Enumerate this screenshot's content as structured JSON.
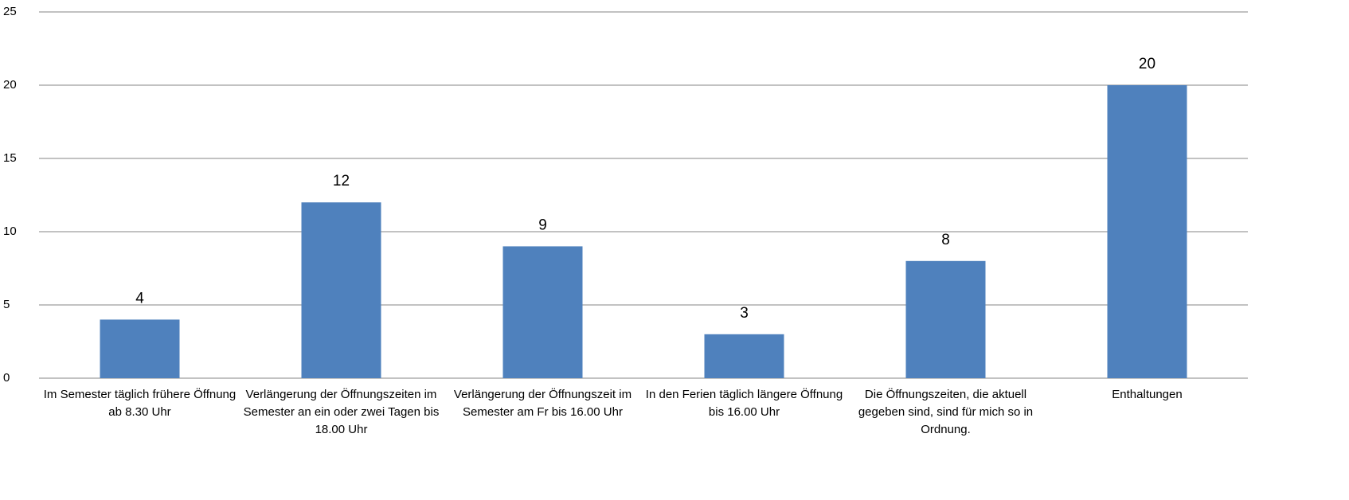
{
  "chart_data": {
    "type": "bar",
    "categories": [
      "Im Semester täglich frühere Öffnung ab 8.30 Uhr",
      "Verlängerung der Öffnungszeiten im Semester an ein oder zwei Tagen bis 18.00 Uhr",
      "Verlängerung der Öffnungszeit im Semester am Fr bis 16.00 Uhr",
      "In den Ferien täglich längere Öffnung bis 16.00 Uhr",
      "Die Öffnungszeiten, die aktuell gegeben sind, sind für mich so in Ordnung.",
      "Enthaltungen"
    ],
    "values": [
      4,
      12,
      9,
      3,
      8,
      20
    ],
    "color": "#4f81bd",
    "ylim": [
      0,
      25
    ],
    "yticks": [
      0,
      5,
      10,
      15,
      20,
      25
    ],
    "grid": true
  }
}
